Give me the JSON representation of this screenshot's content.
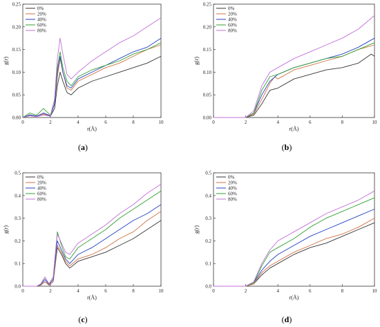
{
  "chart_data": [
    {
      "type": "line",
      "panel_label": "(a)",
      "panel_letter": "a",
      "xlabel": "r(Å)",
      "ylabel": "g(r)",
      "xlim": [
        0,
        10
      ],
      "ylim": [
        0,
        0.25
      ],
      "xticks": [
        "0",
        "2",
        "4",
        "6",
        "8",
        "10"
      ],
      "yticks": [
        "0.00",
        "0.05",
        "0.10",
        "0.15",
        "0.20",
        "0.25"
      ],
      "legend_position": "top-left",
      "series": [
        {
          "name": "0%",
          "color": "#333333",
          "x": [
            0,
            0.5,
            1.0,
            1.5,
            2.0,
            2.3,
            2.5,
            2.7,
            2.9,
            3.2,
            3.5,
            4.0,
            5.0,
            6.0,
            7.0,
            8.0,
            9.0,
            10.0
          ],
          "y": [
            0,
            0.004,
            0.002,
            0.006,
            0.003,
            0.02,
            0.07,
            0.1,
            0.08,
            0.055,
            0.05,
            0.065,
            0.08,
            0.09,
            0.1,
            0.11,
            0.12,
            0.135
          ]
        },
        {
          "name": "20%",
          "color": "#d07040",
          "x": [
            0,
            0.5,
            1.0,
            1.5,
            2.0,
            2.3,
            2.5,
            2.7,
            2.9,
            3.2,
            3.5,
            4.0,
            5.0,
            6.0,
            7.0,
            8.0,
            9.0,
            10.0
          ],
          "y": [
            0,
            0.005,
            0.003,
            0.008,
            0.004,
            0.03,
            0.09,
            0.13,
            0.1,
            0.065,
            0.06,
            0.08,
            0.095,
            0.11,
            0.12,
            0.135,
            0.15,
            0.16
          ]
        },
        {
          "name": "40%",
          "color": "#2040c0",
          "x": [
            0,
            0.5,
            1.0,
            1.5,
            2.0,
            2.3,
            2.5,
            2.7,
            2.9,
            3.2,
            3.5,
            4.0,
            5.0,
            6.0,
            7.0,
            8.0,
            9.0,
            10.0
          ],
          "y": [
            0,
            0.006,
            0.003,
            0.01,
            0.004,
            0.03,
            0.1,
            0.135,
            0.1,
            0.07,
            0.065,
            0.085,
            0.1,
            0.115,
            0.13,
            0.145,
            0.155,
            0.175
          ]
        },
        {
          "name": "60%",
          "color": "#30a030",
          "x": [
            0,
            0.5,
            1.0,
            1.5,
            2.0,
            2.3,
            2.5,
            2.7,
            2.9,
            3.2,
            3.5,
            4.0,
            5.0,
            6.0,
            7.0,
            8.0,
            9.0,
            10.0
          ],
          "y": [
            0,
            0.01,
            0.005,
            0.02,
            0.005,
            0.04,
            0.11,
            0.145,
            0.11,
            0.08,
            0.07,
            0.09,
            0.105,
            0.115,
            0.125,
            0.14,
            0.15,
            0.165
          ]
        },
        {
          "name": "80%",
          "color": "#c070d8",
          "x": [
            0,
            0.5,
            1.0,
            1.5,
            2.0,
            2.3,
            2.5,
            2.7,
            2.9,
            3.2,
            3.5,
            4.0,
            5.0,
            6.0,
            7.0,
            8.0,
            9.0,
            10.0
          ],
          "y": [
            0,
            0.004,
            0.002,
            0.006,
            0.003,
            0.04,
            0.13,
            0.175,
            0.14,
            0.095,
            0.085,
            0.1,
            0.125,
            0.145,
            0.165,
            0.18,
            0.2,
            0.22
          ]
        }
      ]
    },
    {
      "type": "line",
      "panel_label": "(b)",
      "panel_letter": "b",
      "xlabel": "r(Å)",
      "ylabel": "g(r)",
      "xlim": [
        0,
        10
      ],
      "ylim": [
        0,
        0.25
      ],
      "xticks": [
        "0",
        "2",
        "4",
        "6",
        "8",
        "10"
      ],
      "yticks": [
        "0.00",
        "0.05",
        "0.10",
        "0.15",
        "0.20",
        "0.25"
      ],
      "legend_position": "top-left",
      "series": [
        {
          "name": "0%",
          "color": "#333333",
          "x": [
            0,
            2.0,
            2.5,
            3.0,
            3.5,
            4.0,
            5.0,
            6.0,
            7.0,
            8.0,
            9.0,
            9.8,
            10.0
          ],
          "y": [
            0,
            0,
            0.005,
            0.03,
            0.06,
            0.065,
            0.085,
            0.095,
            0.105,
            0.11,
            0.12,
            0.14,
            0.135
          ]
        },
        {
          "name": "20%",
          "color": "#d07040",
          "x": [
            0,
            2.0,
            2.5,
            3.0,
            3.5,
            3.8,
            4.0,
            5.0,
            6.0,
            7.0,
            8.0,
            9.0,
            10.0
          ],
          "y": [
            0,
            0,
            0.008,
            0.04,
            0.075,
            0.09,
            0.085,
            0.105,
            0.115,
            0.125,
            0.135,
            0.15,
            0.16
          ]
        },
        {
          "name": "40%",
          "color": "#2040c0",
          "x": [
            0,
            2.0,
            2.5,
            3.0,
            3.5,
            4.0,
            5.0,
            6.0,
            7.0,
            8.0,
            9.0,
            10.0
          ],
          "y": [
            0,
            0,
            0.01,
            0.05,
            0.08,
            0.095,
            0.11,
            0.12,
            0.13,
            0.14,
            0.155,
            0.175
          ]
        },
        {
          "name": "60%",
          "color": "#30a030",
          "x": [
            0,
            2.0,
            2.5,
            3.0,
            3.5,
            4.0,
            5.0,
            6.0,
            7.0,
            8.0,
            9.0,
            10.0
          ],
          "y": [
            0,
            0,
            0.01,
            0.06,
            0.09,
            0.095,
            0.11,
            0.12,
            0.13,
            0.135,
            0.15,
            0.165
          ]
        },
        {
          "name": "80%",
          "color": "#c070d8",
          "x": [
            0,
            2.0,
            2.5,
            3.0,
            3.5,
            4.0,
            5.0,
            6.0,
            7.0,
            8.0,
            9.0,
            10.0
          ],
          "y": [
            0,
            0,
            0.015,
            0.07,
            0.1,
            0.11,
            0.13,
            0.145,
            0.16,
            0.175,
            0.195,
            0.225
          ]
        }
      ]
    },
    {
      "type": "line",
      "panel_label": "(c)",
      "panel_letter": "c",
      "xlabel": "r(Å)",
      "ylabel": "g(r)",
      "xlim": [
        0,
        10
      ],
      "ylim": [
        0,
        0.5
      ],
      "xticks": [
        "0",
        "2",
        "4",
        "6",
        "8",
        "10"
      ],
      "yticks": [
        "0.0",
        "0.1",
        "0.2",
        "0.3",
        "0.4",
        "0.5"
      ],
      "legend_position": "top-left",
      "series": [
        {
          "name": "0%",
          "color": "#333333",
          "x": [
            0,
            1.0,
            1.3,
            1.6,
            1.9,
            2.2,
            2.5,
            2.8,
            3.1,
            3.4,
            4.0,
            5.0,
            6.0,
            7.0,
            8.0,
            9.0,
            10.0
          ],
          "y": [
            0,
            0,
            0.005,
            0.02,
            0.005,
            0.02,
            0.17,
            0.14,
            0.1,
            0.08,
            0.11,
            0.13,
            0.15,
            0.18,
            0.21,
            0.25,
            0.29
          ]
        },
        {
          "name": "20%",
          "color": "#d07040",
          "x": [
            0,
            1.0,
            1.3,
            1.6,
            1.9,
            2.2,
            2.5,
            2.8,
            3.1,
            3.4,
            4.0,
            5.0,
            6.0,
            7.0,
            8.0,
            9.0,
            10.0
          ],
          "y": [
            0,
            0,
            0.005,
            0.02,
            0.005,
            0.02,
            0.18,
            0.15,
            0.11,
            0.09,
            0.12,
            0.14,
            0.17,
            0.21,
            0.24,
            0.29,
            0.33
          ]
        },
        {
          "name": "40%",
          "color": "#2040c0",
          "x": [
            0,
            1.0,
            1.3,
            1.6,
            1.9,
            2.2,
            2.5,
            2.8,
            3.1,
            3.4,
            4.0,
            5.0,
            6.0,
            7.0,
            8.0,
            9.0,
            10.0
          ],
          "y": [
            0,
            0,
            0.008,
            0.03,
            0.008,
            0.03,
            0.2,
            0.16,
            0.12,
            0.1,
            0.14,
            0.17,
            0.21,
            0.25,
            0.29,
            0.32,
            0.36
          ]
        },
        {
          "name": "60%",
          "color": "#30a030",
          "x": [
            0,
            1.0,
            1.3,
            1.6,
            1.9,
            2.2,
            2.5,
            2.8,
            3.1,
            3.4,
            4.0,
            5.0,
            6.0,
            7.0,
            8.0,
            9.0,
            10.0
          ],
          "y": [
            0,
            0,
            0.01,
            0.04,
            0.01,
            0.04,
            0.24,
            0.18,
            0.13,
            0.12,
            0.17,
            0.21,
            0.25,
            0.3,
            0.34,
            0.38,
            0.42
          ]
        },
        {
          "name": "80%",
          "color": "#c070d8",
          "x": [
            0,
            1.0,
            1.3,
            1.6,
            1.9,
            2.2,
            2.5,
            2.8,
            3.1,
            3.4,
            4.0,
            5.0,
            6.0,
            7.0,
            8.0,
            9.0,
            10.0
          ],
          "y": [
            0,
            0,
            0.01,
            0.04,
            0.01,
            0.04,
            0.23,
            0.19,
            0.15,
            0.14,
            0.19,
            0.23,
            0.27,
            0.32,
            0.36,
            0.41,
            0.45
          ]
        }
      ]
    },
    {
      "type": "line",
      "panel_label": "(d)",
      "panel_letter": "d",
      "xlabel": "r(Å)",
      "ylabel": "g(r)",
      "xlim": [
        0,
        10
      ],
      "ylim": [
        0,
        0.5
      ],
      "xticks": [
        "0",
        "2",
        "4",
        "6",
        "8",
        "10"
      ],
      "yticks": [
        "0.0",
        "0.1",
        "0.2",
        "0.3",
        "0.4",
        "0.5"
      ],
      "legend_position": "top-left",
      "series": [
        {
          "name": "0%",
          "color": "#333333",
          "x": [
            0,
            2.0,
            2.5,
            3.0,
            3.5,
            4.0,
            5.0,
            6.0,
            7.0,
            8.0,
            9.0,
            10.0
          ],
          "y": [
            0,
            0,
            0.01,
            0.05,
            0.08,
            0.1,
            0.14,
            0.17,
            0.19,
            0.22,
            0.25,
            0.28
          ]
        },
        {
          "name": "20%",
          "color": "#d07040",
          "x": [
            0,
            2.0,
            2.5,
            3.0,
            3.5,
            4.0,
            5.0,
            6.0,
            7.0,
            8.0,
            9.0,
            10.0
          ],
          "y": [
            0,
            0,
            0.01,
            0.06,
            0.09,
            0.11,
            0.15,
            0.18,
            0.21,
            0.23,
            0.26,
            0.3
          ]
        },
        {
          "name": "40%",
          "color": "#2040c0",
          "x": [
            0,
            2.0,
            2.5,
            3.0,
            3.5,
            4.0,
            5.0,
            6.0,
            7.0,
            8.0,
            9.0,
            10.0
          ],
          "y": [
            0,
            0,
            0.015,
            0.07,
            0.11,
            0.14,
            0.18,
            0.22,
            0.25,
            0.28,
            0.31,
            0.34
          ]
        },
        {
          "name": "60%",
          "color": "#30a030",
          "x": [
            0,
            2.0,
            2.5,
            3.0,
            3.5,
            4.0,
            5.0,
            6.0,
            7.0,
            8.0,
            9.0,
            10.0
          ],
          "y": [
            0,
            0,
            0.015,
            0.09,
            0.15,
            0.17,
            0.21,
            0.26,
            0.3,
            0.33,
            0.36,
            0.39
          ]
        },
        {
          "name": "80%",
          "color": "#c070d8",
          "x": [
            0,
            2.0,
            2.5,
            3.0,
            3.5,
            4.0,
            5.0,
            6.0,
            7.0,
            8.0,
            9.0,
            10.0
          ],
          "y": [
            0,
            0,
            0.02,
            0.1,
            0.16,
            0.2,
            0.24,
            0.28,
            0.32,
            0.35,
            0.38,
            0.42
          ]
        }
      ]
    }
  ]
}
